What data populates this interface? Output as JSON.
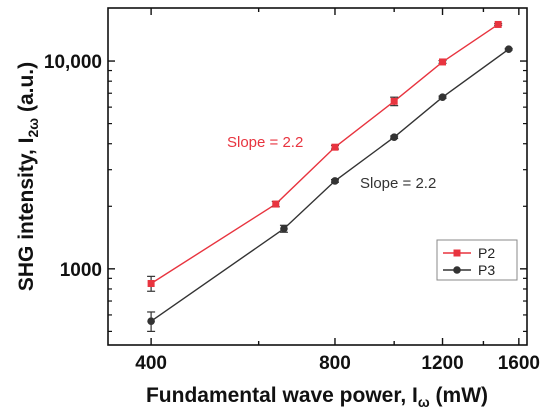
{
  "chart_data": {
    "type": "scatter",
    "xscale": "log",
    "yscale": "log",
    "xlim": [
      340,
      1650
    ],
    "ylim": [
      430,
      18000
    ],
    "xticks": [
      400,
      800,
      1200,
      1600
    ],
    "xtick_labels": [
      "400",
      "800",
      "1200",
      "1600"
    ],
    "yticks": [
      1000,
      10000
    ],
    "ytick_labels": [
      "1000",
      "10,000"
    ],
    "xlabel": {
      "main": "Fundamental wave power, I",
      "sub": "ω",
      "tail": " (mW)"
    },
    "ylabel": {
      "main": "SHG intensity, I",
      "sub": "2ω",
      "tail": " (a.u.)"
    },
    "legend_position": "bottom-right",
    "series": [
      {
        "name": "P2",
        "color": "#e8343f",
        "marker_color": "#e8343f",
        "marker": "square",
        "points": [
          {
            "x": 400,
            "y": 850,
            "err": 70
          },
          {
            "x": 640,
            "y": 2050,
            "err": 60
          },
          {
            "x": 800,
            "y": 3850,
            "err": 80
          },
          {
            "x": 1000,
            "y": 6400,
            "err": 300
          },
          {
            "x": 1200,
            "y": 9900,
            "err": 150
          },
          {
            "x": 1480,
            "y": 15000,
            "err": 150
          }
        ]
      },
      {
        "name": "P3",
        "color": "#333333",
        "marker_color": "#333333",
        "marker": "circle",
        "points": [
          {
            "x": 400,
            "y": 560,
            "err": 60
          },
          {
            "x": 660,
            "y": 1560,
            "err": 60
          },
          {
            "x": 800,
            "y": 2650,
            "err": 40
          },
          {
            "x": 1000,
            "y": 4300,
            "err": 60
          },
          {
            "x": 1200,
            "y": 6700,
            "err": 80
          },
          {
            "x": 1540,
            "y": 11400,
            "err": 100
          }
        ]
      }
    ],
    "annotations": [
      {
        "text": "Slope = 2.2",
        "color": "#e8343f",
        "series": "P2"
      },
      {
        "text": "Slope = 2.2",
        "color": "#333333",
        "series": "P3"
      }
    ]
  }
}
